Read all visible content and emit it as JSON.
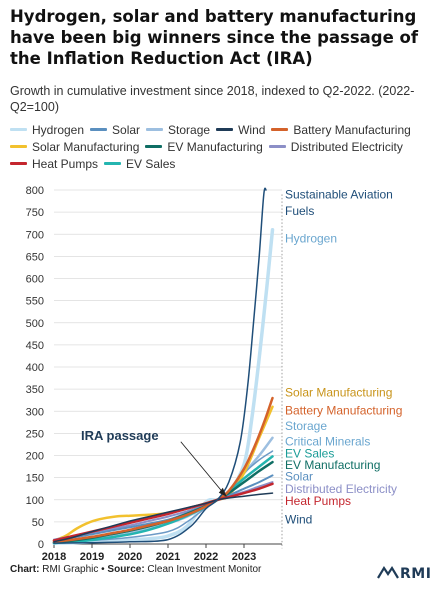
{
  "header": {
    "title": "Hydrogen, solar and battery manufacturing have been big winners since the passage of the Inflation Reduction Act (IRA)",
    "subtitle": "Growth in cumulative investment since 2018, indexed to Q2-2022. (2022-Q2=100)"
  },
  "footer": {
    "chart_label": "Chart:",
    "chart_value": " RMI Graphic • ",
    "source_label": "Source:",
    "source_value": " Clean Investment Monitor",
    "logo_text": "RMI"
  },
  "chart_data": {
    "type": "line",
    "x_ticks": [
      "2018",
      "2019",
      "2020",
      "2021",
      "2022",
      "2023"
    ],
    "y_ticks": [
      "0",
      "50",
      "100",
      "150",
      "200",
      "250",
      "300",
      "350",
      "400",
      "450",
      "500",
      "550",
      "600",
      "650",
      "700",
      "750",
      "800"
    ],
    "ylim": [
      0,
      800
    ],
    "xlim": [
      2018,
      2024
    ],
    "grid": "horizontal",
    "legend_position": "top",
    "annotation": "IRA passage",
    "annotation_x": 2022.6,
    "series": [
      {
        "name": "Hydrogen",
        "label": "Hydrogen",
        "color": "#bfe0f2",
        "width": 3.5,
        "label_color": "#6aa6cf",
        "x": [
          2018,
          2018.5,
          2019,
          2019.5,
          2020,
          2020.5,
          2021,
          2021.5,
          2022,
          2022.3,
          2022.6,
          2023,
          2023.2,
          2023.4,
          2023.6,
          2023.75
        ],
        "y": [
          2,
          3,
          5,
          8,
          10,
          12,
          18,
          40,
          95,
          100,
          115,
          180,
          280,
          420,
          580,
          710
        ]
      },
      {
        "name": "Solar",
        "label": "Solar",
        "color": "#5a8fbf",
        "width": 2,
        "label_color": "#5a8fbf",
        "x": [
          2018,
          2018.5,
          2019,
          2019.5,
          2020,
          2020.5,
          2021,
          2021.5,
          2022,
          2022.3,
          2022.6,
          2023,
          2023.4,
          2023.75
        ],
        "y": [
          8,
          15,
          22,
          30,
          38,
          46,
          55,
          70,
          88,
          100,
          110,
          125,
          140,
          155
        ]
      },
      {
        "name": "Storage",
        "label": "Storage",
        "color": "#9dbfe0",
        "width": 2.5,
        "label_color": "#6aa6cf",
        "x": [
          2018,
          2018.5,
          2019,
          2019.5,
          2020,
          2020.5,
          2021,
          2021.5,
          2022,
          2022.3,
          2022.6,
          2023,
          2023.4,
          2023.75
        ],
        "y": [
          3,
          6,
          10,
          16,
          24,
          34,
          46,
          62,
          85,
          100,
          120,
          160,
          200,
          240
        ]
      },
      {
        "name": "Wind",
        "label": "Wind",
        "color": "#1f3b57",
        "width": 1.5,
        "label_color": "#1f4e79",
        "x": [
          2018,
          2018.5,
          2019,
          2019.5,
          2020,
          2020.5,
          2021,
          2021.5,
          2022,
          2022.3,
          2022.6,
          2023,
          2023.4,
          2023.75
        ],
        "y": [
          5,
          15,
          28,
          40,
          52,
          62,
          72,
          82,
          92,
          100,
          104,
          108,
          112,
          115
        ]
      },
      {
        "name": "Battery Manufacturing",
        "label": "Battery Manufacturing",
        "color": "#d4622a",
        "width": 2.5,
        "label_color": "#d4622a",
        "x": [
          2018,
          2018.5,
          2019,
          2019.5,
          2020,
          2020.5,
          2021,
          2021.5,
          2022,
          2022.3,
          2022.6,
          2023,
          2023.3,
          2023.55,
          2023.75
        ],
        "y": [
          5,
          10,
          16,
          24,
          32,
          42,
          52,
          66,
          85,
          100,
          120,
          170,
          225,
          280,
          330
        ]
      },
      {
        "name": "Solar Manufacturing",
        "label": "Solar Manufacturing",
        "color": "#f2c12e",
        "width": 2.5,
        "label_color": "#c8941a",
        "x": [
          2018,
          2018.3,
          2018.6,
          2018.9,
          2019.2,
          2019.6,
          2020,
          2020.5,
          2021,
          2021.5,
          2022,
          2022.3,
          2022.6,
          2023,
          2023.4,
          2023.75
        ],
        "y": [
          8,
          18,
          35,
          48,
          56,
          62,
          64,
          66,
          70,
          80,
          92,
          100,
          110,
          160,
          240,
          310
        ]
      },
      {
        "name": "EV Manufacturing",
        "label": "EV Manufacturing",
        "color": "#0f6e64",
        "width": 2.5,
        "label_color": "#0f6e64",
        "x": [
          2018,
          2018.5,
          2019,
          2019.5,
          2020,
          2020.5,
          2021,
          2021.5,
          2022,
          2022.3,
          2022.6,
          2023,
          2023.4,
          2023.75
        ],
        "y": [
          4,
          8,
          14,
          22,
          30,
          40,
          52,
          68,
          86,
          100,
          115,
          140,
          165,
          185
        ]
      },
      {
        "name": "Distributed Electricity",
        "label": "Distributed Electricity",
        "color": "#8c8fc7",
        "width": 2,
        "label_color": "#8c8fc7",
        "x": [
          2018,
          2018.5,
          2019,
          2019.5,
          2020,
          2020.5,
          2021,
          2021.5,
          2022,
          2022.3,
          2022.6,
          2023,
          2023.4,
          2023.75
        ],
        "y": [
          10,
          18,
          26,
          34,
          42,
          52,
          62,
          74,
          88,
          100,
          108,
          118,
          130,
          140
        ]
      },
      {
        "name": "Heat Pumps",
        "label": "Heat Pumps",
        "color": "#c4262e",
        "width": 2.5,
        "label_color": "#c4262e",
        "x": [
          2018,
          2018.5,
          2019,
          2019.5,
          2020,
          2020.5,
          2021,
          2021.5,
          2022,
          2022.3,
          2022.6,
          2023,
          2023.4,
          2023.75
        ],
        "y": [
          8,
          18,
          28,
          38,
          48,
          58,
          68,
          80,
          92,
          100,
          106,
          115,
          125,
          136
        ]
      },
      {
        "name": "EV Sales",
        "label": "EV Sales",
        "color": "#24b5b0",
        "width": 2.5,
        "label_color": "#1a9c97",
        "x": [
          2018,
          2018.5,
          2019,
          2019.5,
          2020,
          2020.5,
          2021,
          2021.5,
          2022,
          2022.3,
          2022.6,
          2023,
          2023.4,
          2023.75
        ],
        "y": [
          2,
          5,
          9,
          15,
          22,
          32,
          46,
          64,
          84,
          100,
          118,
          148,
          175,
          198
        ]
      },
      {
        "name": "Sustainable Aviation Fuels",
        "label": "Sustainable Aviation Fuels",
        "color": "#1f4e79",
        "width": 1.5,
        "label_color": "#1f4e79",
        "x": [
          2018,
          2019,
          2020,
          2021,
          2021.6,
          2022,
          2022.3,
          2022.6,
          2022.9,
          2023.1,
          2023.25,
          2023.4,
          2023.52,
          2023.58
        ],
        "y": [
          2,
          3,
          5,
          10,
          40,
          80,
          100,
          140,
          230,
          360,
          500,
          650,
          790,
          800
        ]
      },
      {
        "name": "Critical Minerals",
        "label": "Critical Minerals",
        "color": "#6d9ac6",
        "width": 1.5,
        "label_color": "#6aa6cf",
        "x": [
          2018,
          2019,
          2020,
          2021,
          2021.5,
          2022,
          2022.3,
          2022.6,
          2023,
          2023.4,
          2023.75
        ],
        "y": [
          3,
          8,
          15,
          28,
          50,
          82,
          100,
          120,
          160,
          190,
          210
        ]
      }
    ],
    "legend_rows": [
      [
        "Hydrogen",
        "Solar",
        "Storage",
        "Wind",
        "Battery Manufacturing"
      ],
      [
        "Solar Manufacturing",
        "EV Manufacturing",
        "Distributed Electricity"
      ],
      [
        "Heat Pumps",
        "EV Sales"
      ]
    ],
    "end_labels": [
      {
        "name": "Sustainable Aviation Fuels",
        "lines": [
          "Sustainable Aviation",
          "Fuels"
        ]
      },
      {
        "name": "Hydrogen",
        "lines": [
          "Hydrogen"
        ]
      },
      {
        "name": "Solar Manufacturing",
        "lines": [
          "Solar Manufacturing"
        ]
      },
      {
        "name": "Battery Manufacturing",
        "lines": [
          "Battery Manufacturing"
        ]
      },
      {
        "name": "Storage",
        "lines": [
          "Storage"
        ]
      },
      {
        "name": "Critical Minerals",
        "lines": [
          "Critical Minerals"
        ]
      },
      {
        "name": "EV Sales",
        "lines": [
          "EV Sales"
        ]
      },
      {
        "name": "EV Manufacturing",
        "lines": [
          "EV Manufacturing"
        ]
      },
      {
        "name": "Solar",
        "lines": [
          "Solar"
        ]
      },
      {
        "name": "Distributed Electricity",
        "lines": [
          "Distributed Electricity"
        ]
      },
      {
        "name": "Heat Pumps",
        "lines": [
          "Heat Pumps"
        ]
      },
      {
        "name": "Wind",
        "lines": [
          "Wind"
        ]
      }
    ]
  }
}
